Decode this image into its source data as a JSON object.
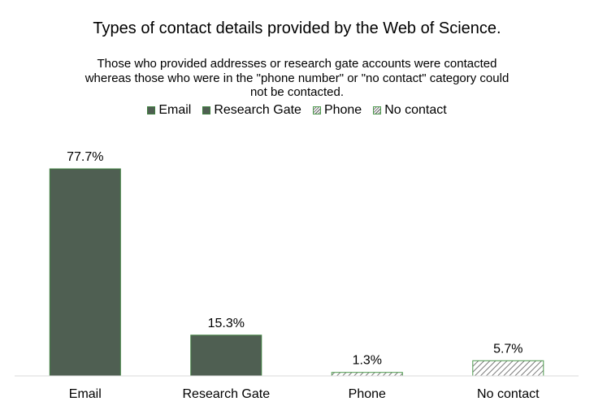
{
  "chart_data": {
    "type": "bar",
    "title": "Types of contact details provided by the Web of Science.",
    "subtitle_lines": [
      "Those who provided addresses or research gate accounts were contacted",
      "whereas those who were in the \"phone number\" or \"no contact\" category could",
      "not be contacted."
    ],
    "categories": [
      "Email",
      "Research Gate",
      "Phone",
      "No contact"
    ],
    "values": [
      77.7,
      15.3,
      1.3,
      5.7
    ],
    "data_labels": [
      "77.7%",
      "15.3%",
      "1.3%",
      "5.7%"
    ],
    "ylim": [
      0,
      100
    ],
    "grid": false,
    "legend_position": "top",
    "legend": [
      {
        "label": "Email",
        "fill": "solid"
      },
      {
        "label": "Research Gate",
        "fill": "solid"
      },
      {
        "label": "Phone",
        "fill": "hatched"
      },
      {
        "label": "No contact",
        "fill": "hatched"
      }
    ],
    "bar_fills": [
      "solid",
      "solid",
      "hatched",
      "hatched"
    ]
  },
  "colors": {
    "solid_fill": "#4f5f52",
    "bar_outline": "#3e7f3e",
    "hatch_outline": "#4d9a4d",
    "hatch_line": "#7a7a7a",
    "axis_line": "#d9d9d9",
    "text": "#000000"
  }
}
